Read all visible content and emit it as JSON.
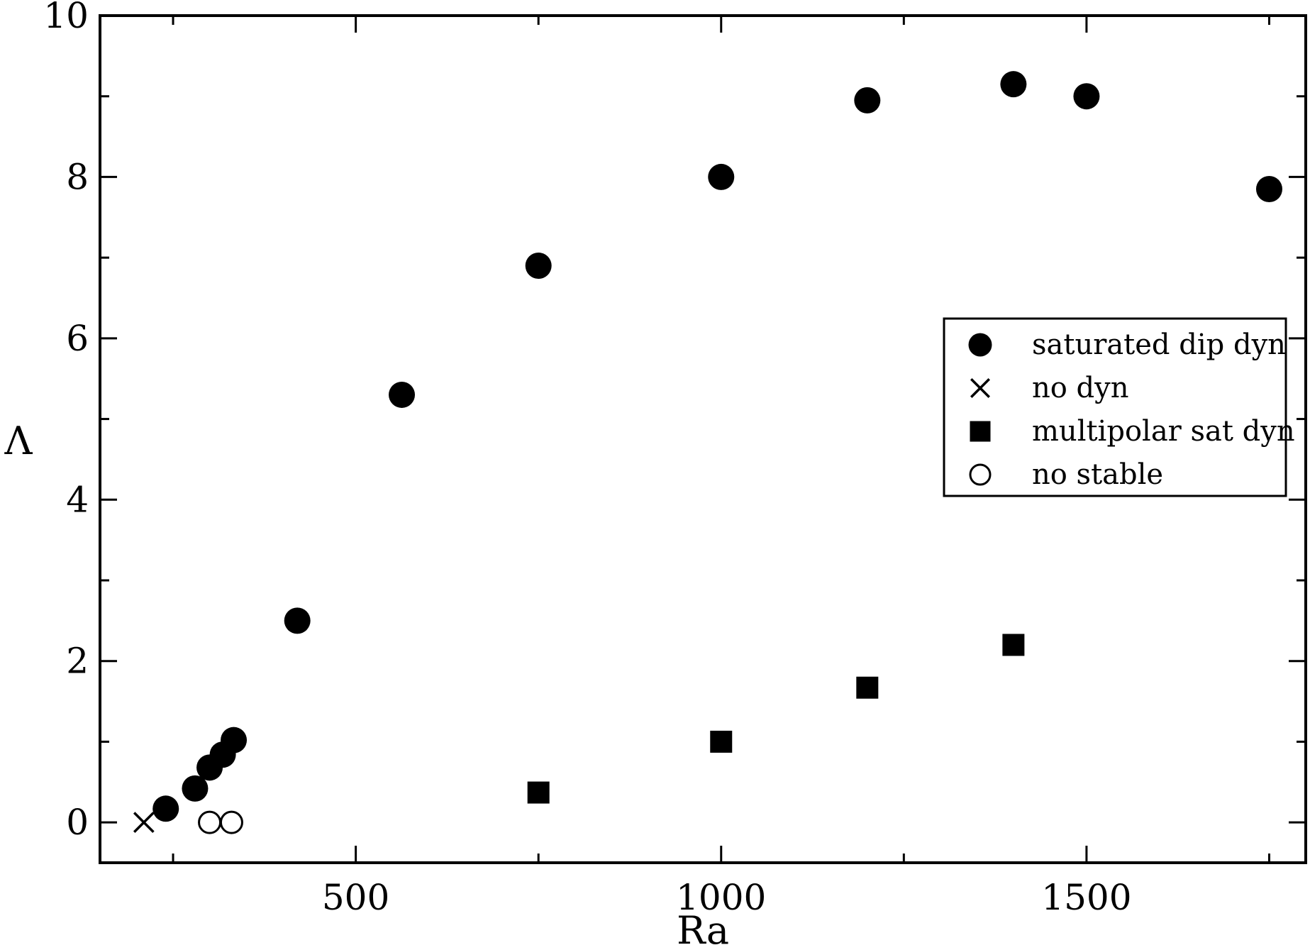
{
  "chart_data": {
    "type": "scatter",
    "title": "",
    "xlabel": "Ra",
    "ylabel": "Λ",
    "xlim": [
      150,
      1800
    ],
    "ylim": [
      -0.5,
      10
    ],
    "x_major_ticks": [
      500,
      1000,
      1500
    ],
    "x_tick_labels": [
      "500",
      "1000",
      "1500"
    ],
    "x_minor_ticks": [
      250,
      750,
      1250,
      1750
    ],
    "y_major_ticks": [
      0,
      2,
      4,
      6,
      8,
      10
    ],
    "y_tick_labels": [
      "0",
      "2",
      "4",
      "6",
      "8",
      "10"
    ],
    "y_minor_ticks": [
      1,
      3,
      5,
      7,
      9
    ],
    "grid": false,
    "legend_position": "right",
    "series": [
      {
        "name": "saturated dip dyn",
        "marker": "filled-circle",
        "color": "#000000",
        "points": [
          [
            240,
            0.17
          ],
          [
            280,
            0.42
          ],
          [
            300,
            0.68
          ],
          [
            318,
            0.84
          ],
          [
            333,
            1.02
          ],
          [
            420,
            2.5
          ],
          [
            563,
            5.3
          ],
          [
            750,
            6.9
          ],
          [
            1000,
            8.0
          ],
          [
            1200,
            8.95
          ],
          [
            1400,
            9.15
          ],
          [
            1500,
            9.0
          ],
          [
            1750,
            7.85
          ]
        ]
      },
      {
        "name": "no dyn",
        "marker": "x",
        "color": "#000000",
        "points": [
          [
            210,
            0
          ]
        ]
      },
      {
        "name": "multipolar sat dyn",
        "marker": "filled-square",
        "color": "#000000",
        "points": [
          [
            750,
            0.37
          ],
          [
            1000,
            1.0
          ],
          [
            1200,
            1.67
          ],
          [
            1400,
            2.2
          ]
        ]
      },
      {
        "name": "no stable",
        "marker": "open-circle",
        "color": "#000000",
        "points": [
          [
            300,
            0
          ],
          [
            330,
            0
          ]
        ]
      }
    ]
  }
}
